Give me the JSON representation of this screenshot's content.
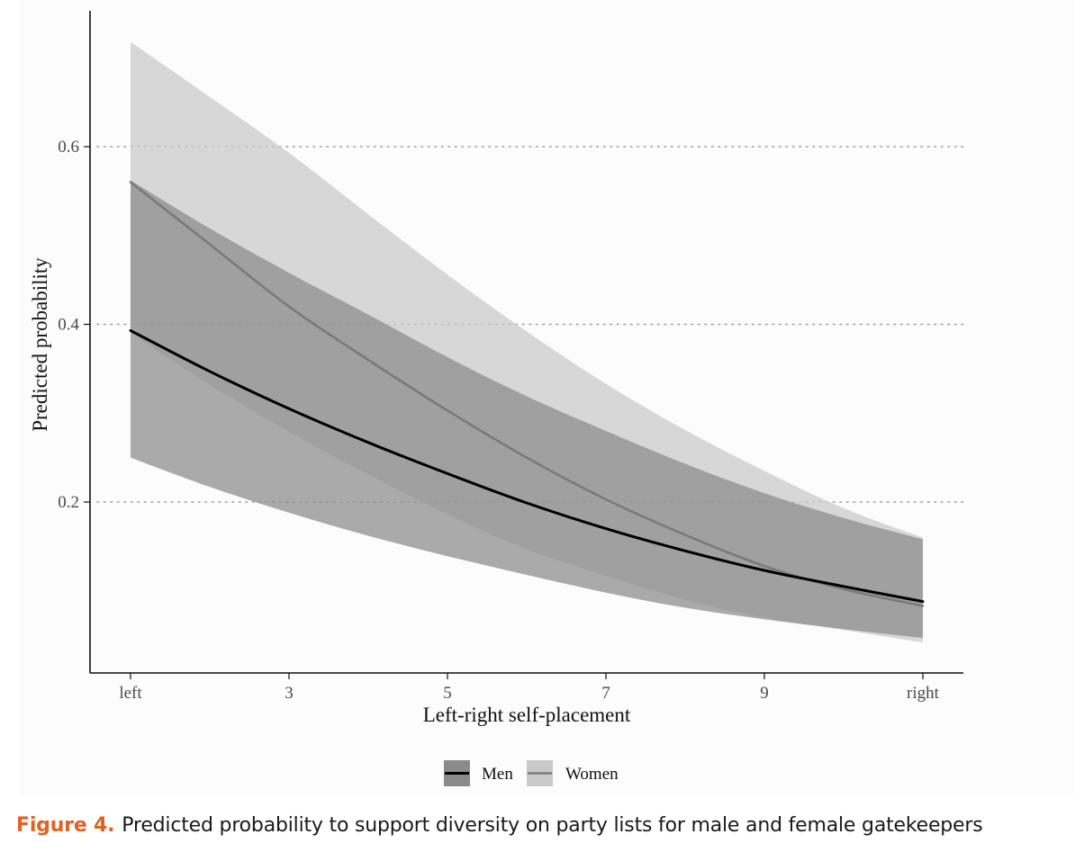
{
  "chart_data": {
    "type": "line",
    "title": "",
    "xlabel": "Left-right self-placement",
    "ylabel": "Predicted probability",
    "x": [
      1,
      2,
      3,
      4,
      5,
      6,
      7,
      8,
      9,
      10,
      11
    ],
    "xlim": [
      0.75,
      11.5
    ],
    "ylim": [
      0.02,
      0.75
    ],
    "x_ticks": [
      {
        "value": 1,
        "label": "left"
      },
      {
        "value": 3,
        "label": "3"
      },
      {
        "value": 5,
        "label": "5"
      },
      {
        "value": 7,
        "label": "7"
      },
      {
        "value": 9,
        "label": "9"
      },
      {
        "value": 11,
        "label": "right"
      }
    ],
    "y_ticks": [
      {
        "value": 0.2,
        "label": "0.2"
      },
      {
        "value": 0.4,
        "label": "0.4"
      },
      {
        "value": 0.6,
        "label": "0.6"
      }
    ],
    "grid": "horizontal dotted at y ticks",
    "legend_position": "bottom",
    "series": [
      {
        "name": "Men",
        "line_color": "#000000",
        "band_color": "#8a8a8a",
        "values": [
          0.393,
          0.347,
          0.305,
          0.267,
          0.232,
          0.199,
          0.17,
          0.145,
          0.123,
          0.105,
          0.088
        ],
        "lower": [
          0.25,
          0.217,
          0.188,
          0.162,
          0.139,
          0.118,
          0.098,
          0.081,
          0.068,
          0.057,
          0.047
        ],
        "upper": [
          0.562,
          0.508,
          0.458,
          0.411,
          0.363,
          0.319,
          0.28,
          0.243,
          0.21,
          0.182,
          0.158
        ]
      },
      {
        "name": "Women",
        "line_color": "#7a7a7a",
        "band_color": "#c9c9c9",
        "values": [
          0.56,
          0.49,
          0.42,
          0.36,
          0.303,
          0.25,
          0.203,
          0.163,
          0.128,
          0.102,
          0.083
        ],
        "lower": [
          0.39,
          0.332,
          0.279,
          0.231,
          0.186,
          0.147,
          0.117,
          0.09,
          0.07,
          0.056,
          0.042
        ],
        "upper": [
          0.718,
          0.656,
          0.593,
          0.524,
          0.456,
          0.392,
          0.333,
          0.281,
          0.235,
          0.193,
          0.16
        ]
      }
    ]
  },
  "caption": {
    "label": "Figure 4.",
    "text": "Predicted probability to support diversity on party lists for male and female gatekeepers"
  }
}
